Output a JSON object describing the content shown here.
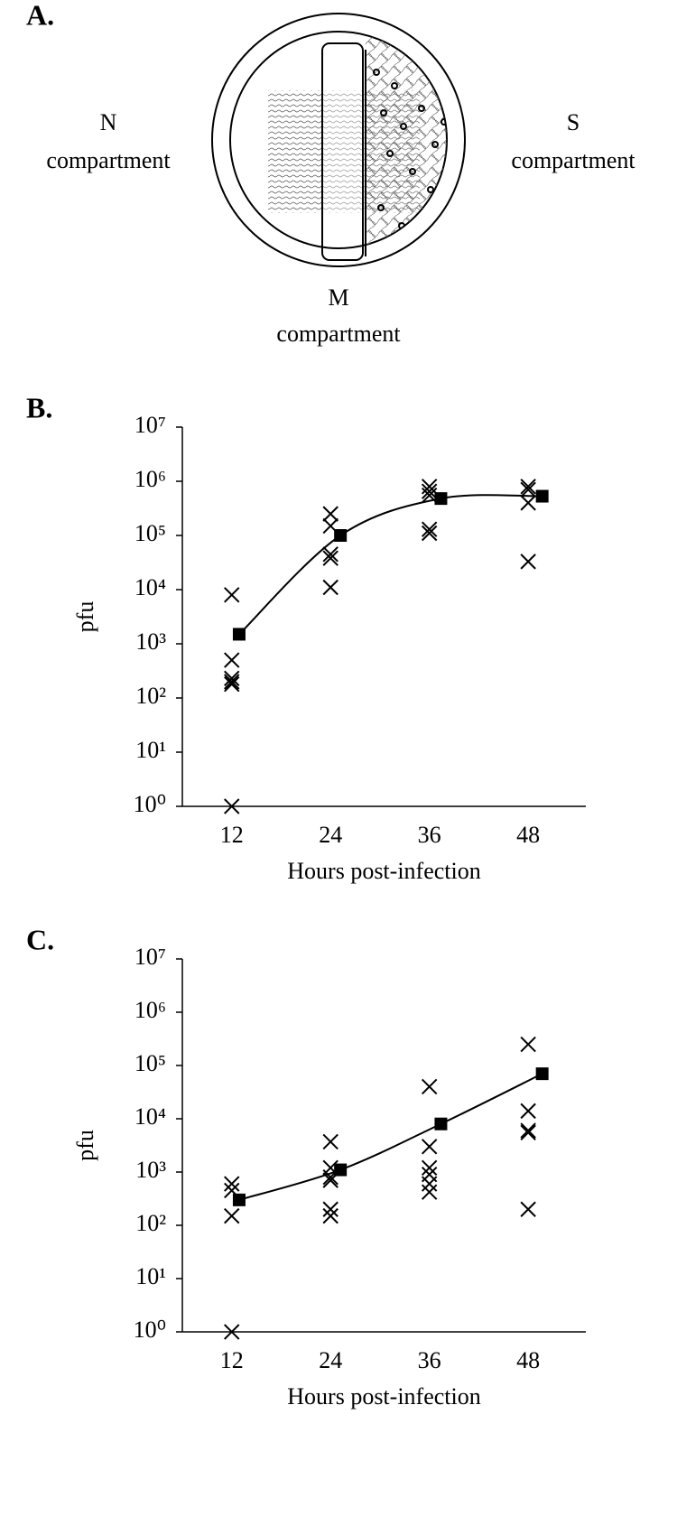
{
  "panel_a": {
    "label": "A.",
    "n_label": [
      "N",
      "compartment"
    ],
    "s_label": [
      "S",
      "compartment"
    ],
    "m_label": [
      "M",
      "compartment"
    ]
  },
  "chart_data": [
    {
      "type": "scatter",
      "panel_label": "B.",
      "y_label": "pfu",
      "x_label": "Hours post-infection",
      "log_y": true,
      "xlim": [
        6,
        55
      ],
      "xticks": [
        12,
        24,
        36,
        48
      ],
      "ylim": [
        1,
        10000000
      ],
      "yticks": [
        {
          "value": 1,
          "label": "10⁰"
        },
        {
          "value": 10,
          "label": "10¹"
        },
        {
          "value": 100,
          "label": "10²"
        },
        {
          "value": 1000,
          "label": "10³"
        },
        {
          "value": 10000,
          "label": "10⁴"
        },
        {
          "value": 100000,
          "label": "10⁵"
        },
        {
          "value": 1000000,
          "label": "10⁶"
        },
        {
          "value": 10000000,
          "label": "10⁷"
        }
      ],
      "color": "#000000",
      "series": [
        {
          "marker": "x",
          "x": [
            12,
            12,
            12,
            12,
            12,
            12,
            24,
            24,
            24,
            24,
            24,
            36,
            36,
            36,
            36,
            36,
            48,
            48,
            48,
            48
          ],
          "values": [
            8000,
            500,
            230,
            200,
            180,
            1,
            250000,
            150000,
            45000,
            38000,
            11000,
            800000,
            650000,
            550000,
            130000,
            110000,
            800000,
            700000,
            400000,
            33000
          ]
        },
        {
          "marker": "square",
          "line": true,
          "smooth": true,
          "x": [
            12.9,
            25.2,
            37.4,
            49.7
          ],
          "values": [
            1500,
            100000,
            480000,
            530000
          ]
        }
      ]
    },
    {
      "type": "scatter",
      "panel_label": "C.",
      "y_label": "pfu",
      "x_label": "Hours post-infection",
      "log_y": true,
      "xlim": [
        6,
        55
      ],
      "xticks": [
        12,
        24,
        36,
        48
      ],
      "ylim": [
        1,
        10000000
      ],
      "yticks": [
        {
          "value": 1,
          "label": "10⁰"
        },
        {
          "value": 10,
          "label": "10¹"
        },
        {
          "value": 100,
          "label": "10²"
        },
        {
          "value": 1000,
          "label": "10³"
        },
        {
          "value": 10000,
          "label": "10⁴"
        },
        {
          "value": 100000,
          "label": "10⁵"
        },
        {
          "value": 1000000,
          "label": "10⁶"
        },
        {
          "value": 10000000,
          "label": "10⁷"
        }
      ],
      "color": "#000000",
      "series": [
        {
          "marker": "x",
          "x": [
            12,
            12,
            12,
            12,
            24,
            24,
            24,
            24,
            24,
            24,
            36,
            36,
            36,
            36,
            36,
            36,
            48,
            48,
            48,
            48,
            48
          ],
          "values": [
            600,
            450,
            150,
            1,
            3700,
            1200,
            800,
            700,
            200,
            150,
            40000,
            3000,
            1200,
            900,
            600,
            420,
            250000,
            14000,
            6000,
            5500,
            200
          ]
        },
        {
          "marker": "square",
          "line": true,
          "smooth": true,
          "x": [
            12.9,
            25.2,
            37.4,
            49.7
          ],
          "values": [
            300,
            1100,
            8000,
            70000
          ]
        }
      ]
    }
  ]
}
